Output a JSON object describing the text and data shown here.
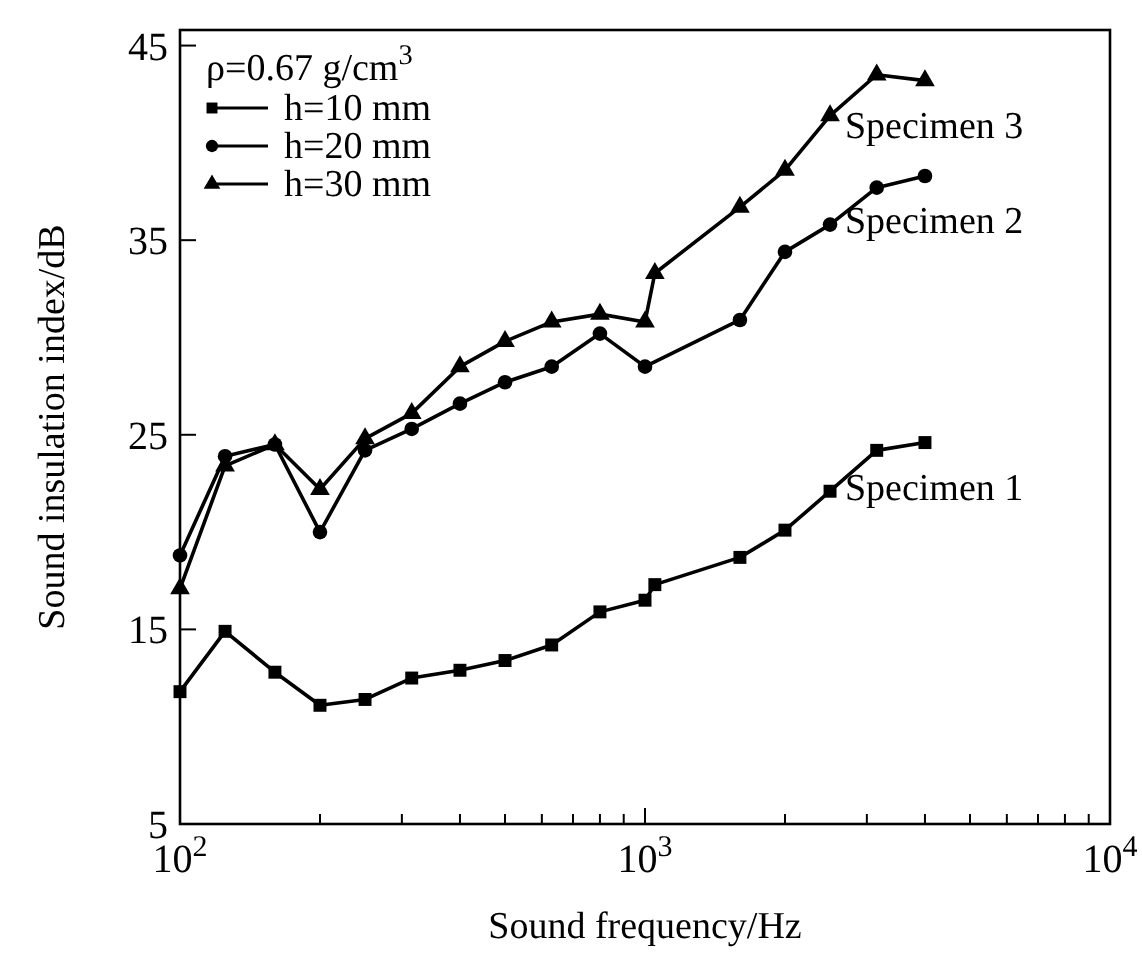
{
  "chart_data": {
    "type": "line",
    "xlabel": "Sound frequency/Hz",
    "ylabel": "Sound insulation index/dB",
    "legend_title": "ρ=0.67 g/cm$^{3}$",
    "legend": "top left",
    "log": "x",
    "line_style": "solid",
    "grid": false,
    "xlim": [
      100,
      10000
    ],
    "ylim": [
      5,
      45.8
    ],
    "xticks": [
      {
        "value": 100,
        "label": "10$^{2}$"
      },
      {
        "value": 200,
        "label": null
      },
      {
        "value": 300,
        "label": null
      },
      {
        "value": 400,
        "label": null
      },
      {
        "value": 500,
        "label": null
      },
      {
        "value": 600,
        "label": null
      },
      {
        "value": 700,
        "label": null
      },
      {
        "value": 800,
        "label": null
      },
      {
        "value": 900,
        "label": null
      },
      {
        "value": 1000,
        "label": "10$^{3}$"
      },
      {
        "value": 2000,
        "label": null
      },
      {
        "value": 3000,
        "label": null
      },
      {
        "value": 4000,
        "label": null
      },
      {
        "value": 5000,
        "label": null
      },
      {
        "value": 6000,
        "label": null
      },
      {
        "value": 7000,
        "label": null
      },
      {
        "value": 8000,
        "label": null
      },
      {
        "value": 9000,
        "label": null
      },
      {
        "value": 10000,
        "label": "10$^{4}$"
      }
    ],
    "yticks": [
      5,
      15,
      25,
      35,
      45
    ],
    "series": [
      {
        "name": "h=10 mm",
        "color": "#000000",
        "marker": "square",
        "x": [
          100,
          125,
          160,
          200,
          250,
          315,
          400,
          500,
          630,
          800,
          1000,
          1050,
          1600,
          2000,
          2500,
          3150,
          4000
        ],
        "values": [
          11.8,
          14.9,
          12.8,
          11.1,
          11.4,
          12.5,
          12.9,
          13.4,
          14.2,
          15.9,
          16.5,
          17.3,
          18.7,
          20.1,
          22.1,
          24.2,
          24.6
        ]
      },
      {
        "name": "h=20 mm",
        "color": "#000000",
        "marker": "circle",
        "x": [
          100,
          125,
          160,
          200,
          250,
          315,
          400,
          500,
          630,
          800,
          1000,
          1600,
          2000,
          2500,
          3150,
          4000
        ],
        "values": [
          18.8,
          23.9,
          24.5,
          20.0,
          24.2,
          25.3,
          26.6,
          27.7,
          28.5,
          30.2,
          28.5,
          30.9,
          34.4,
          35.8,
          37.7,
          38.3
        ]
      },
      {
        "name": "h=30 mm",
        "color": "#000000",
        "marker": "triangle",
        "x": [
          100,
          125,
          160,
          200,
          250,
          315,
          400,
          500,
          630,
          800,
          1000,
          1050,
          1600,
          2000,
          2500,
          3150,
          4000
        ],
        "values": [
          17.1,
          23.4,
          24.5,
          22.2,
          24.8,
          26.1,
          28.5,
          29.8,
          30.8,
          31.2,
          30.8,
          33.3,
          36.7,
          38.6,
          41.4,
          43.5,
          43.2
        ]
      }
    ],
    "annotations": [
      "Specimen 3",
      "Specimen 2",
      "Specimen 1"
    ]
  }
}
